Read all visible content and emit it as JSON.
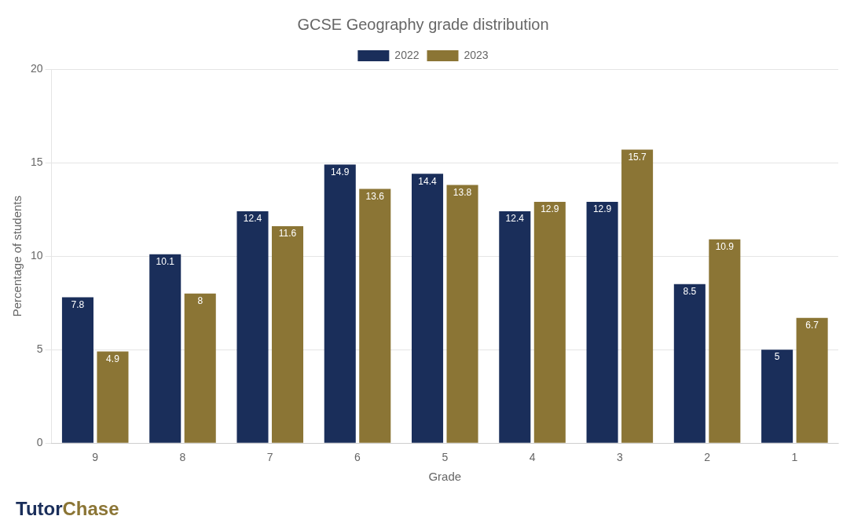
{
  "chart_data": {
    "type": "bar",
    "title": "GCSE Geography grade distribution",
    "x_label": "Grade",
    "y_label": "Percentage of students",
    "categories": [
      "9",
      "8",
      "7",
      "6",
      "5",
      "4",
      "3",
      "2",
      "1"
    ],
    "series": [
      {
        "name": "2022",
        "color": "#1a2e5a",
        "values": [
          7.8,
          10.1,
          12.4,
          14.9,
          14.4,
          12.4,
          12.9,
          8.5,
          5.0
        ]
      },
      {
        "name": "2023",
        "color": "#8b7535",
        "values": [
          4.9,
          8.0,
          11.6,
          13.6,
          13.8,
          12.9,
          15.7,
          10.9,
          6.7
        ]
      }
    ],
    "ylim": [
      0,
      20
    ],
    "yticks": [
      0,
      5,
      10,
      15,
      20
    ],
    "grid": true,
    "legend": "top",
    "data_labels": true,
    "annotations": [
      "Tutor",
      "Chase"
    ]
  }
}
